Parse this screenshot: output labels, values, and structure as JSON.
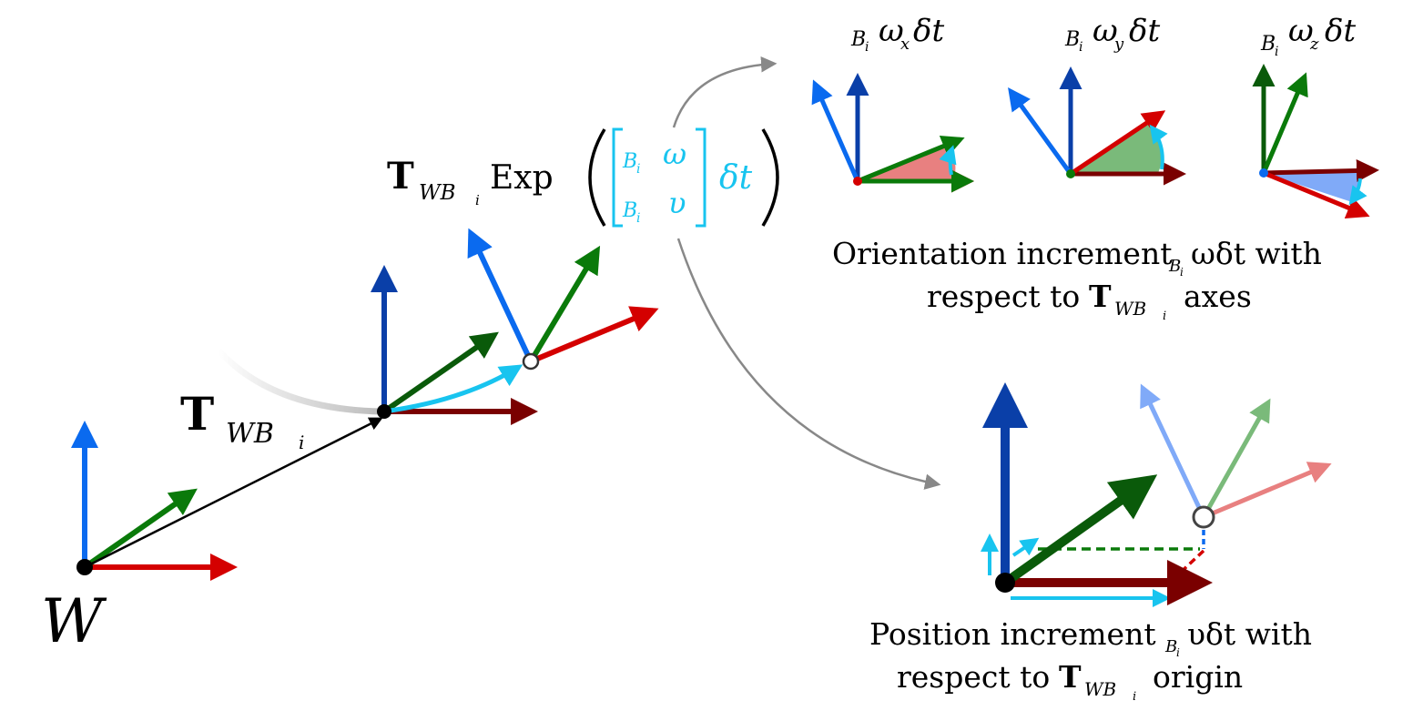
{
  "labels": {
    "world": "W",
    "transform_T": "T",
    "transform_sub": "WB",
    "transform_subsub": "i",
    "exp": "Exp",
    "omega": "ω",
    "nu": "υ",
    "B": "B",
    "i": "i",
    "delta_t": "δt",
    "omega_x": "ω",
    "sub_x": "x",
    "sub_y": "y",
    "sub_z": "z"
  },
  "captions": {
    "orientation_line1_a": "Orientation increment",
    "orientation_line1_b": "ωδt with",
    "orientation_line2_a": "respect to",
    "orientation_line2_b": "axes",
    "position_line1_a": "Position increment",
    "position_line1_b": "υδt with",
    "position_line2_a": "respect to",
    "position_line2_b": "origin"
  },
  "colors": {
    "x_axis": "#d40000",
    "x_axis_dark": "#7a0000",
    "y_axis": "#0a7a0a",
    "y_axis_dark": "#0a5a0a",
    "z_axis": "#0a6aef",
    "z_axis_dark": "#0a3fa8",
    "velocity": "#18c4ef",
    "arc": "#888888",
    "wedge_x": "#e88080",
    "wedge_y": "#7aba7a",
    "wedge_z": "#80aaf8"
  }
}
